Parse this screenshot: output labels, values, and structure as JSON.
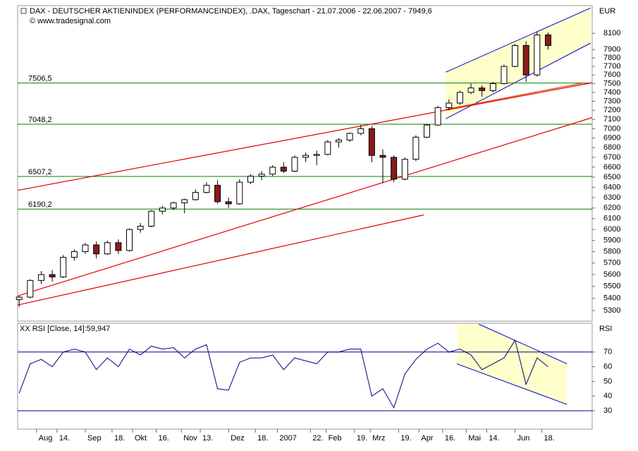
{
  "chart_data": [
    {
      "type": "candlestick",
      "title": "DAX  - DEUTSCHER AKTIENINDEX (PERFORMANCEINDEX), .DAX, Tageschart - 21.07.2006 - 22.06.2007 - 7949,6",
      "subtitle": "© www.tradesignal.com",
      "y_label": "EUR",
      "log_scale": true,
      "up_color": "#ffffff",
      "down_color": "#8b1a1a",
      "edge_color": "#000000",
      "x": [
        "2006-07-21",
        "2006-07-28",
        "2006-08-04",
        "2006-08-11",
        "2006-08-18",
        "2006-08-25",
        "2006-09-01",
        "2006-09-08",
        "2006-09-15",
        "2006-09-22",
        "2006-09-29",
        "2006-10-06",
        "2006-10-13",
        "2006-10-20",
        "2006-10-27",
        "2006-11-03",
        "2006-11-10",
        "2006-11-17",
        "2006-11-24",
        "2006-12-01",
        "2006-12-08",
        "2006-12-15",
        "2006-12-22",
        "2006-12-29",
        "2007-01-05",
        "2007-01-12",
        "2007-01-19",
        "2007-01-26",
        "2007-02-02",
        "2007-02-09",
        "2007-02-16",
        "2007-02-23",
        "2007-03-02",
        "2007-03-09",
        "2007-03-16",
        "2007-03-23",
        "2007-03-30",
        "2007-04-06",
        "2007-04-13",
        "2007-04-20",
        "2007-04-27",
        "2007-05-04",
        "2007-05-11",
        "2007-05-18",
        "2007-05-25",
        "2007-06-01",
        "2007-06-08",
        "2007-06-15",
        "2007-06-22"
      ],
      "open": [
        5390,
        5410,
        5550,
        5600,
        5580,
        5750,
        5800,
        5860,
        5780,
        5880,
        5810,
        6000,
        6030,
        6170,
        6200,
        6250,
        6280,
        6350,
        6420,
        6260,
        6240,
        6450,
        6510,
        6530,
        6600,
        6560,
        6700,
        6720,
        6730,
        6860,
        6880,
        6950,
        7000,
        6720,
        6700,
        6480,
        6680,
        6910,
        7040,
        7230,
        7280,
        7400,
        7450,
        7420,
        7500,
        7700,
        7950,
        7600,
        8080
      ],
      "high": [
        5420,
        5560,
        5630,
        5640,
        5770,
        5820,
        5880,
        5890,
        5900,
        5910,
        6010,
        6060,
        6180,
        6220,
        6260,
        6290,
        6380,
        6450,
        6470,
        6300,
        6480,
        6530,
        6560,
        6620,
        6650,
        6720,
        6750,
        6770,
        6880,
        6900,
        6960,
        7040,
        7030,
        6780,
        6720,
        6700,
        6930,
        7050,
        7250,
        7320,
        7420,
        7500,
        7480,
        7520,
        7720,
        7970,
        8000,
        8120,
        8110
      ],
      "low": [
        5330,
        5400,
        5520,
        5540,
        5570,
        5720,
        5780,
        5740,
        5770,
        5780,
        5800,
        5970,
        6020,
        6140,
        6180,
        6150,
        6270,
        6340,
        6240,
        6200,
        6230,
        6430,
        6470,
        6510,
        6540,
        6550,
        6650,
        6620,
        6720,
        6800,
        6860,
        6930,
        6650,
        6440,
        6450,
        6470,
        6660,
        6900,
        7030,
        7200,
        7260,
        7380,
        7350,
        7400,
        7490,
        7690,
        7520,
        7580,
        7900
      ],
      "close": [
        5410,
        5550,
        5600,
        5580,
        5750,
        5800,
        5860,
        5780,
        5880,
        5810,
        6000,
        6030,
        6170,
        6200,
        6250,
        6280,
        6350,
        6420,
        6260,
        6240,
        6450,
        6510,
        6530,
        6600,
        6560,
        6700,
        6720,
        6730,
        6860,
        6880,
        6950,
        7000,
        6720,
        6700,
        6480,
        6680,
        6910,
        7040,
        7230,
        7280,
        7400,
        7450,
        7420,
        7500,
        7700,
        7950,
        7600,
        8080,
        7949.6
      ],
      "xlim": [
        "2006-07-20",
        "2007-07-20"
      ],
      "ylim": [
        5215,
        8450
      ],
      "yticks": [
        5300,
        5400,
        5500,
        5600,
        5700,
        5800,
        5900,
        6000,
        6100,
        6200,
        6300,
        6400,
        6500,
        6600,
        6700,
        6800,
        6900,
        7000,
        7100,
        7200,
        7300,
        7400,
        7500,
        7600,
        7700,
        7800,
        7900,
        8100
      ],
      "levels": [
        {
          "value": 7506.5,
          "label": "7506,5"
        },
        {
          "value": 7048.2,
          "label": "7048,2"
        },
        {
          "value": 6507.2,
          "label": "6507,2"
        },
        {
          "value": 6190.2,
          "label": "6190,2"
        }
      ],
      "level_color": "#008000",
      "trendlines": [
        {
          "x": [
            "2006-07-20",
            "2007-07-20"
          ],
          "y": [
            6370,
            7510
          ],
          "color": "#e00000"
        },
        {
          "x": [
            "2006-07-20",
            "2007-07-20"
          ],
          "y": [
            5420,
            7120
          ],
          "color": "#e00000"
        },
        {
          "x": [
            "2006-07-20",
            "2007-04-04"
          ],
          "y": [
            5345,
            6135
          ],
          "color": "#e00000"
        },
        {
          "x": [
            "2007-04-18",
            "2007-07-15"
          ],
          "y": [
            7210,
            7510
          ],
          "color": "#e04000"
        }
      ],
      "channel": {
        "color": "#0000cc",
        "fill": "#ffffcc",
        "upper": {
          "x": [
            "2007-04-18",
            "2007-07-19"
          ],
          "y": [
            7633,
            8420
          ]
        },
        "lower": {
          "x": [
            "2007-04-18",
            "2007-07-19"
          ],
          "y": [
            7107,
            7980
          ]
        }
      }
    },
    {
      "type": "line",
      "title": "XX RSI [Close, 14]:59,947",
      "y_label": "RSI",
      "color": "#000080",
      "values": [
        42,
        62,
        65,
        60,
        70,
        72,
        70,
        58,
        66,
        60,
        72,
        68,
        74,
        72,
        73,
        66,
        72,
        75,
        45,
        44,
        63,
        66,
        66,
        68,
        58,
        66,
        64,
        62,
        70,
        70,
        72,
        72,
        40,
        45,
        32,
        55,
        65,
        72,
        76,
        70,
        72,
        68,
        58,
        62,
        66,
        78,
        48,
        66,
        60
      ],
      "xlim": [
        "2006-07-20",
        "2007-07-20"
      ],
      "ylim": [
        17.5,
        89.6
      ],
      "yticks": [
        30,
        40,
        50,
        60,
        70
      ],
      "levels": [
        {
          "value": 70
        },
        {
          "value": 30
        }
      ],
      "level_color": "#000080",
      "channel": {
        "color": "#0000cc",
        "fill": "#ffffcc",
        "upper": {
          "x": [
            "2007-05-09",
            "2007-07-04"
          ],
          "y": [
            89,
            62
          ]
        },
        "lower": {
          "x": [
            "2007-04-25",
            "2007-07-04"
          ],
          "y": [
            62,
            34.3
          ]
        }
      },
      "xticks": [
        {
          "value": "2006-08-01",
          "label": "Aug"
        },
        {
          "value": "2006-08-14",
          "label": "14."
        },
        {
          "value": "2006-09-01",
          "label": "Sep"
        },
        {
          "value": "2006-09-18",
          "label": "18."
        },
        {
          "value": "2006-10-01",
          "label": "Okt"
        },
        {
          "value": "2006-10-16",
          "label": "16."
        },
        {
          "value": "2006-11-01",
          "label": "Nov"
        },
        {
          "value": "2006-11-13",
          "label": "13."
        },
        {
          "value": "2006-12-01",
          "label": "Dez"
        },
        {
          "value": "2006-12-18",
          "label": "18."
        },
        {
          "value": "2007-01-01",
          "label": "2007"
        },
        {
          "value": "2007-01-22",
          "label": "22."
        },
        {
          "value": "2007-02-01",
          "label": "Feb"
        },
        {
          "value": "2007-02-19",
          "label": "19."
        },
        {
          "value": "2007-03-01",
          "label": "Mrz"
        },
        {
          "value": "2007-03-19",
          "label": "19."
        },
        {
          "value": "2007-04-01",
          "label": "Apr"
        },
        {
          "value": "2007-04-16",
          "label": "16."
        },
        {
          "value": "2007-05-01",
          "label": "Mai"
        },
        {
          "value": "2007-05-14",
          "label": "14."
        },
        {
          "value": "2007-06-01",
          "label": "Jun"
        },
        {
          "value": "2007-06-18",
          "label": "18."
        }
      ]
    }
  ]
}
